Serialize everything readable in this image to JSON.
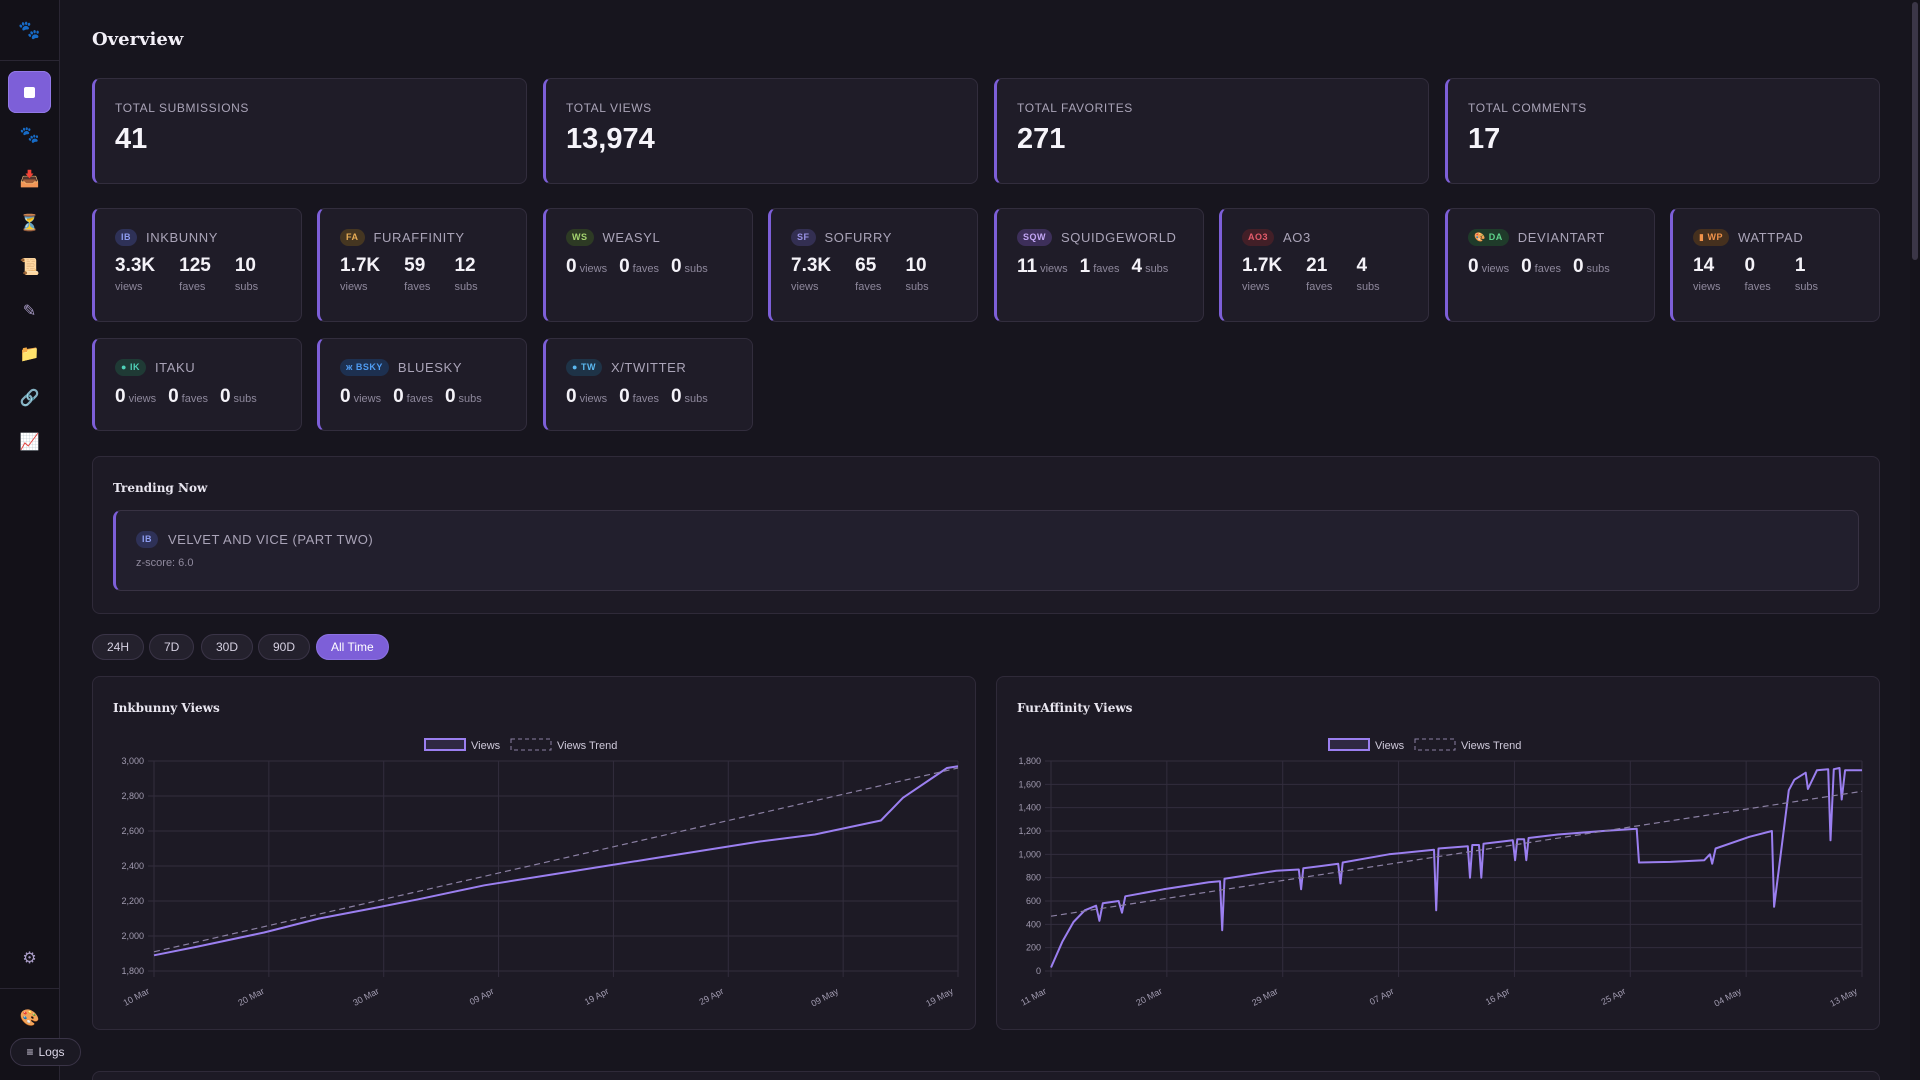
{
  "sidebar": {
    "logs_label": "Logs",
    "logs_icon": "≡",
    "icons": [
      "paw-icon",
      "dashboard-icon",
      "paw-icon",
      "inbox-tray-icon",
      "hourglass-icon",
      "scroll-icon",
      "pencil-icon",
      "folder-icon",
      "link-icon",
      "chart-increasing-icon",
      "gear-icon",
      "palette-icon"
    ],
    "glyphs": {
      "paw": "🐾",
      "inbox": "📥",
      "hourglass": "⏳",
      "scroll": "📜",
      "pencil": "✎",
      "folder": "📁",
      "link": "🔗",
      "chart": "📈",
      "gear": "⚙",
      "palette": "🎨"
    }
  },
  "page": {
    "title": "Overview"
  },
  "totals": [
    {
      "label": "TOTAL SUBMISSIONS",
      "value": "41"
    },
    {
      "label": "TOTAL VIEWS",
      "value": "13,974"
    },
    {
      "label": "TOTAL FAVORITES",
      "value": "271"
    },
    {
      "label": "TOTAL COMMENTS",
      "value": "17"
    }
  ],
  "platforms": [
    {
      "badge": "IB",
      "name": "INKBUNNY",
      "views": "3.3K",
      "faves": "125",
      "subs": "10",
      "badge_bg": "#2e3157",
      "badge_fg": "#8e9cf0"
    },
    {
      "badge": "FA",
      "name": "FURAFFINITY",
      "views": "1.7K",
      "faves": "59",
      "subs": "12",
      "badge_bg": "#453621",
      "badge_fg": "#e8ad55"
    },
    {
      "badge": "WS",
      "name": "WEASYL",
      "views": "0",
      "faves": "0",
      "subs": "0",
      "badge_bg": "#2d3a24",
      "badge_fg": "#a4d36f"
    },
    {
      "badge": "SF",
      "name": "SOFURRY",
      "views": "7.3K",
      "faves": "65",
      "subs": "10",
      "badge_bg": "#332f52",
      "badge_fg": "#9a93e6"
    },
    {
      "badge": "SQW",
      "name": "SQUIDGEWORLD",
      "views": "11",
      "faves": "1",
      "subs": "4",
      "badge_bg": "#3d2f5a",
      "badge_fg": "#c2a6f4"
    },
    {
      "badge": "AO3",
      "name": "AO3",
      "views": "1.7K",
      "faves": "21",
      "subs": "4",
      "badge_bg": "#421f27",
      "badge_fg": "#e45b6a"
    },
    {
      "badge": "DA",
      "name": "DEVIANTART",
      "views": "0",
      "faves": "0",
      "subs": "0",
      "badge_bg": "#1f3b2a",
      "badge_fg": "#5fd38b",
      "icon": "palette-icon"
    },
    {
      "badge": "WP",
      "name": "WATTPAD",
      "views": "14",
      "faves": "0",
      "subs": "1",
      "badge_bg": "#45301e",
      "badge_fg": "#f0924a",
      "icon": "book-icon"
    },
    {
      "badge": "IK",
      "name": "ITAKU",
      "views": "0",
      "faves": "0",
      "subs": "0",
      "badge_bg": "#1f3a35",
      "badge_fg": "#4fd1b8",
      "icon": "cupcake-icon"
    },
    {
      "badge": "BSKY",
      "name": "BLUESKY",
      "views": "0",
      "faves": "0",
      "subs": "0",
      "badge_bg": "#1d3050",
      "badge_fg": "#4f9cf2",
      "icon": "butterfly-icon"
    },
    {
      "badge": "TW",
      "name": "X/TWITTER",
      "views": "0",
      "faves": "0",
      "subs": "0",
      "badge_bg": "#1e3347",
      "badge_fg": "#5bb8f0",
      "icon": "bird-icon"
    }
  ],
  "units": {
    "views": "views",
    "faves": "faves",
    "subs": "subs"
  },
  "trending": {
    "title": "Trending Now",
    "item": {
      "badge": "IB",
      "name": "VELVET AND VICE (PART TWO)",
      "zscore": "z-score: 6.0"
    }
  },
  "ranges": [
    {
      "label": "24H",
      "active": false
    },
    {
      "label": "7D",
      "active": false
    },
    {
      "label": "30D",
      "active": false
    },
    {
      "label": "90D",
      "active": false
    },
    {
      "label": "All Time",
      "active": true
    }
  ],
  "colors": {
    "accent": "#7d5fd8",
    "line": "#9b7ff0",
    "card_bg": "#1f1c28",
    "bg": "#17151e"
  },
  "chart_data": [
    {
      "type": "line",
      "title": "Inkbunny Views",
      "legend": [
        "Views",
        "Views Trend"
      ],
      "x_ticks": [
        "10 Mar",
        "20 Mar",
        "30 Mar",
        "09 Apr",
        "19 Apr",
        "29 Apr",
        "09 May",
        "19 May"
      ],
      "y_ticks": [
        "1,800",
        "2,000",
        "2,200",
        "2,400",
        "2,600",
        "2,800",
        "3,000"
      ],
      "ylim": [
        1800,
        3000
      ],
      "xlim": [
        0,
        73
      ],
      "series": [
        {
          "name": "Views",
          "style": "solid",
          "points": [
            [
              0,
              1890
            ],
            [
              4,
              1940
            ],
            [
              10,
              2020
            ],
            [
              15,
              2100
            ],
            [
              20,
              2160
            ],
            [
              24,
              2210
            ],
            [
              30,
              2290
            ],
            [
              35,
              2340
            ],
            [
              40,
              2390
            ],
            [
              45,
              2440
            ],
            [
              50,
              2490
            ],
            [
              55,
              2540
            ],
            [
              60,
              2580
            ],
            [
              66,
              2660
            ],
            [
              68,
              2790
            ],
            [
              72,
              2960
            ],
            [
              73,
              2970
            ]
          ]
        },
        {
          "name": "Views Trend",
          "style": "dashed",
          "points": [
            [
              0,
              1910
            ],
            [
              73,
              2960
            ]
          ]
        }
      ]
    },
    {
      "type": "line",
      "title": "FurAffinity Views",
      "legend": [
        "Views",
        "Views Trend"
      ],
      "x_ticks": [
        "11 Mar",
        "20 Mar",
        "29 Mar",
        "07 Apr",
        "16 Apr",
        "25 Apr",
        "04 May",
        "13 May"
      ],
      "y_ticks": [
        "0",
        "200",
        "400",
        "600",
        "800",
        "1,000",
        "1,200",
        "1,400",
        "1,600",
        "1,800"
      ],
      "ylim": [
        0,
        1800
      ],
      "xlim": [
        0,
        72
      ],
      "series": [
        {
          "name": "Views",
          "style": "solid",
          "points": [
            [
              0,
              30
            ],
            [
              1,
              250
            ],
            [
              2,
              420
            ],
            [
              3,
              520
            ],
            [
              4,
              560
            ],
            [
              4.3,
              430
            ],
            [
              4.6,
              580
            ],
            [
              6,
              600
            ],
            [
              6.3,
              500
            ],
            [
              6.6,
              640
            ],
            [
              10,
              700
            ],
            [
              14,
              760
            ],
            [
              15,
              770
            ],
            [
              15.2,
              350
            ],
            [
              15.4,
              790
            ],
            [
              20,
              860
            ],
            [
              22,
              870
            ],
            [
              22.2,
              700
            ],
            [
              22.4,
              880
            ],
            [
              24,
              900
            ],
            [
              25.5,
              920
            ],
            [
              25.7,
              750
            ],
            [
              25.9,
              930
            ],
            [
              30,
              1000
            ],
            [
              34,
              1040
            ],
            [
              34.2,
              520
            ],
            [
              34.4,
              1050
            ],
            [
              37,
              1070
            ],
            [
              37.2,
              800
            ],
            [
              37.4,
              1080
            ],
            [
              38,
              1080
            ],
            [
              38.2,
              800
            ],
            [
              38.4,
              1090
            ],
            [
              41,
              1120
            ],
            [
              41.2,
              950
            ],
            [
              41.4,
              1130
            ],
            [
              42,
              1130
            ],
            [
              42.2,
              950
            ],
            [
              42.4,
              1140
            ],
            [
              45,
              1170
            ],
            [
              49,
              1200
            ],
            [
              52,
              1220
            ],
            [
              52.2,
              930
            ],
            [
              55,
              935
            ],
            [
              58,
              950
            ],
            [
              58.5,
              1000
            ],
            [
              58.7,
              920
            ],
            [
              59,
              1050
            ],
            [
              62,
              1150
            ],
            [
              64,
              1200
            ],
            [
              64.2,
              550
            ],
            [
              65.5,
              1550
            ],
            [
              66,
              1640
            ],
            [
              67,
              1700
            ],
            [
              67.2,
              1560
            ],
            [
              68,
              1720
            ],
            [
              69,
              1730
            ],
            [
              69.2,
              1120
            ],
            [
              69.5,
              1730
            ],
            [
              70,
              1740
            ],
            [
              70.2,
              1470
            ],
            [
              70.5,
              1720
            ],
            [
              72,
              1720
            ]
          ]
        },
        {
          "name": "Views Trend",
          "style": "dashed",
          "points": [
            [
              0,
              470
            ],
            [
              72,
              1540
            ]
          ]
        }
      ]
    }
  ]
}
